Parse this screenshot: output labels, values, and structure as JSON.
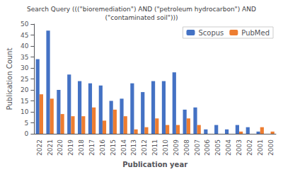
{
  "chart_data": {
    "type": "bar",
    "title": "Search Query (((\"bioremediation\") AND (\"petroleum hydrocarbon\") AND\n(\"contaminated soil\")))",
    "xlabel": "Publication year",
    "ylabel": "Publication Count",
    "categories": [
      "2022",
      "2021",
      "2020",
      "2019",
      "2018",
      "2017",
      "2016",
      "2015",
      "2014",
      "2013",
      "2012",
      "2011",
      "2010",
      "2009",
      "2008",
      "2007",
      "2006",
      "2005",
      "2004",
      "2003",
      "2002",
      "2001",
      "2000"
    ],
    "series": [
      {
        "name": "Scopus",
        "color": "#4472c4",
        "values": [
          34,
          47,
          20,
          27,
          24,
          23,
          22,
          15,
          16,
          23,
          19,
          24,
          24,
          28,
          11,
          12,
          2,
          4,
          2,
          4,
          3,
          1,
          0
        ]
      },
      {
        "name": "PubMed",
        "color": "#ed7d31",
        "values": [
          18,
          16,
          9,
          8,
          8,
          12,
          6,
          11,
          8,
          2,
          3,
          7,
          4,
          4,
          7,
          4,
          0,
          0,
          0,
          1,
          0,
          3,
          1
        ]
      }
    ],
    "ylim": [
      0,
      50
    ],
    "yticks": [
      0,
      5,
      10,
      15,
      20,
      25,
      30,
      35,
      40,
      45,
      50
    ],
    "grid": false,
    "legend": "upper right"
  }
}
